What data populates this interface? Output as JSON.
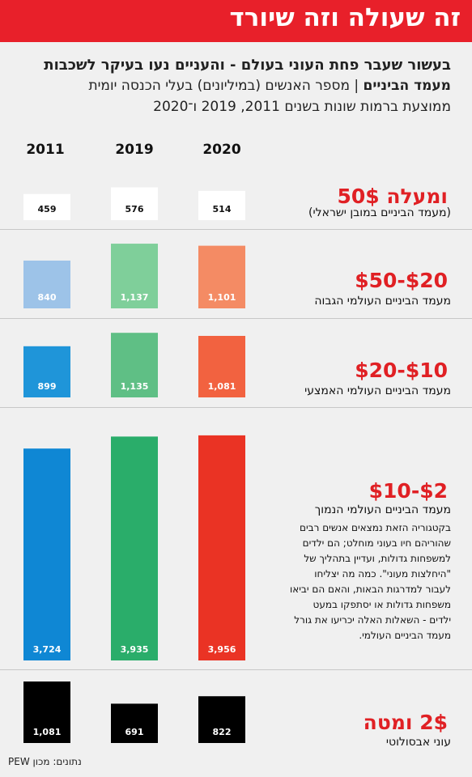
{
  "header": {
    "title": "זה שעולה וזה שיורד"
  },
  "subtitle": {
    "line1": "בעשור שעבר פחת העוני בעולם - והעניים נעו בעיקר לשכבות",
    "line2_bold": "מעמד הביניים",
    "line2_rest": " | מספר האנשים (במיליונים) בעלי הכנסה יומית",
    "line3": "ממוצעת ברמות שונות בשנים 2011, 2019 ו־2020"
  },
  "chart_data": {
    "type": "bar",
    "unit": "מיליונים",
    "years": [
      "2011",
      "2019",
      "2020"
    ],
    "categories": [
      {
        "title": "ומעלה 50$",
        "subtitle": "(מעמד הביניים במובן ישראלי)",
        "values": [
          459,
          576,
          514
        ],
        "labels": [
          "459",
          "576",
          "514"
        ],
        "colors": [
          "#ffffff",
          "#ffffff",
          "#ffffff"
        ],
        "label_colors": [
          "#111111",
          "#111111",
          "#111111"
        ]
      },
      {
        "title": "$20-$50",
        "subtitle": "מעמד הביניים העולמי הגבוה",
        "values": [
          840,
          1137,
          1101
        ],
        "labels": [
          "840",
          "1,137",
          "1,101"
        ],
        "colors": [
          "#9dc3e8",
          "#7fcf9a",
          "#f48b64"
        ],
        "label_colors": [
          "#ffffff",
          "#ffffff",
          "#ffffff"
        ]
      },
      {
        "title": "$10-$20",
        "subtitle": "מעמד הביניים העולמי האמצעי",
        "values": [
          899,
          1135,
          1081
        ],
        "labels": [
          "899",
          "1,135",
          "1,081"
        ],
        "colors": [
          "#1f95d9",
          "#5fbf85",
          "#f26240"
        ],
        "label_colors": [
          "#ffffff",
          "#ffffff",
          "#ffffff"
        ]
      },
      {
        "title": "$2-$10",
        "subtitle": "מעמד הביניים העולמי הנמוך",
        "values": [
          3724,
          3935,
          3956
        ],
        "labels": [
          "3,724",
          "3,935",
          "3,956"
        ],
        "colors": [
          "#0f87d4",
          "#2aad6a",
          "#ea3324"
        ],
        "label_colors": [
          "#ffffff",
          "#ffffff",
          "#ffffff"
        ]
      },
      {
        "title": "2$ ומטה",
        "subtitle": "עוני אבסולוטי",
        "values": [
          1081,
          691,
          822
        ],
        "labels": [
          "1,081",
          "691",
          "822"
        ],
        "colors": [
          "#000000",
          "#000000",
          "#000000"
        ],
        "label_colors": [
          "#ffffff",
          "#ffffff",
          "#ffffff"
        ]
      }
    ]
  },
  "note": "בקטגוריה הזאת נמצאים אנשים רבים שהוריהם חיו בעוני מוחלט; הם ילדים למשפחות גדולות, ועדיין בתהליך של \"היחלצות מעוני\". כמה מה יצליחו לעבור למדרגות הבאות, והאם הם יביאו משפחות גדולות או יסתפקו במעט ילדים - השאלות האלה יכריעו את גורל מעמד הביניים העולמי.",
  "source": "נתונים: מכון PEW"
}
